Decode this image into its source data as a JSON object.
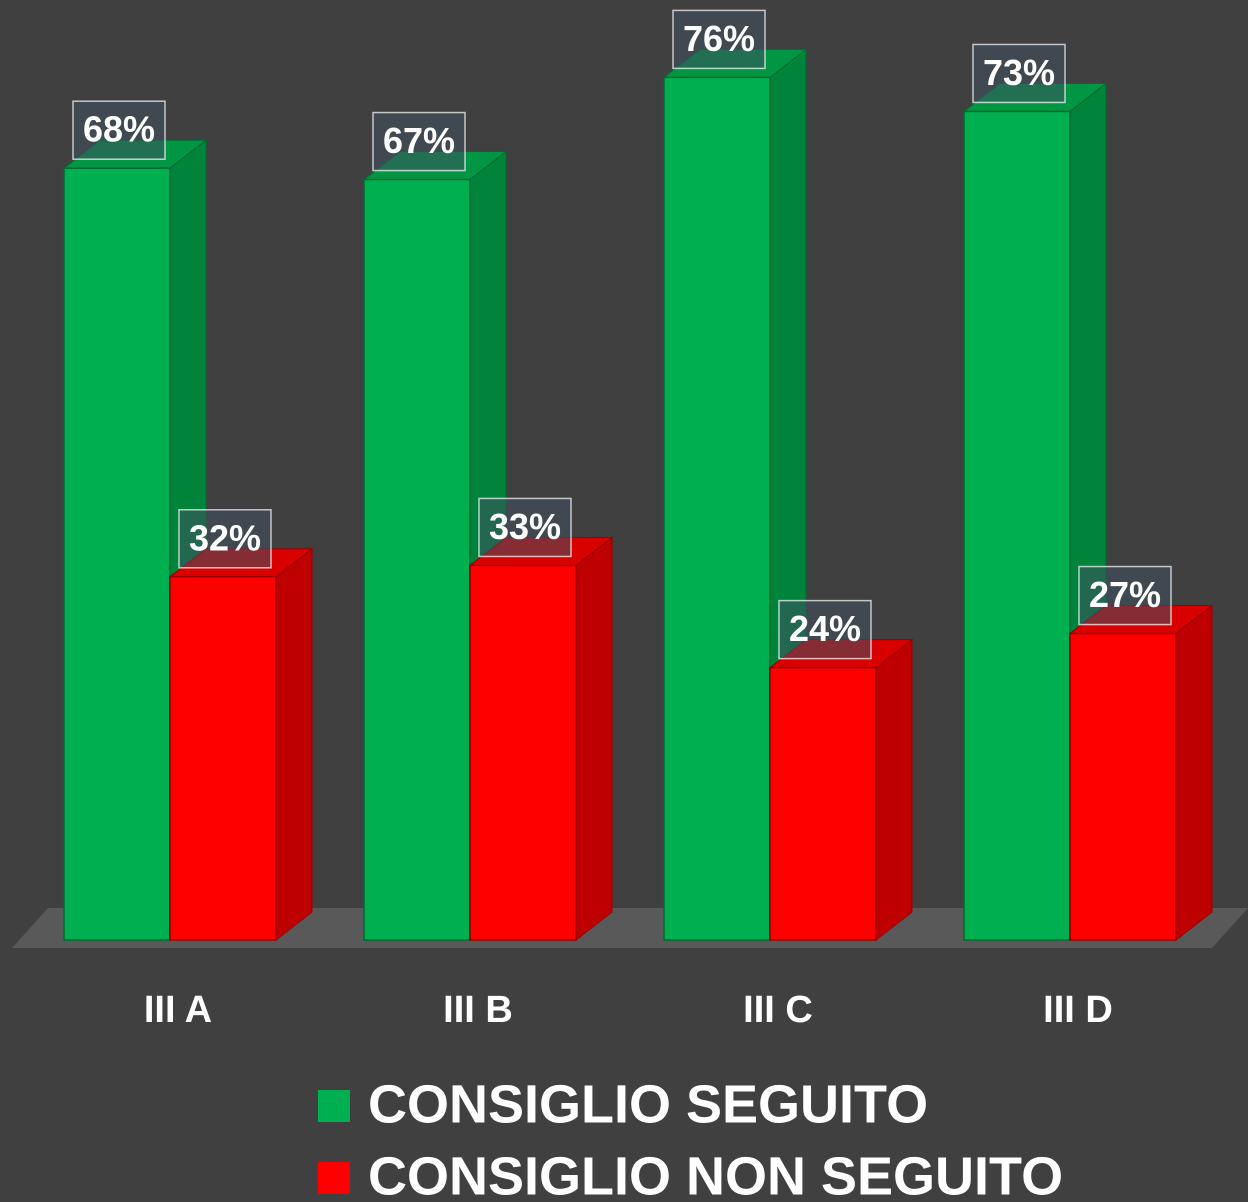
{
  "chart_data": {
    "type": "bar3d",
    "categories": [
      "III A",
      "III B",
      "III C",
      "III D"
    ],
    "series": [
      {
        "name": "CONSIGLIO SEGUITO",
        "color": "#00b050",
        "values": [
          68,
          67,
          76,
          73
        ],
        "value_labels": [
          "68%",
          "67%",
          "76%",
          "73%"
        ]
      },
      {
        "name": "CONSIGLIO NON SEGUITO",
        "color": "#ff0000",
        "values": [
          32,
          33,
          24,
          27
        ],
        "value_labels": [
          "32%",
          "33%",
          "24%",
          "27%"
        ]
      }
    ],
    "ylim": [
      0,
      80
    ]
  }
}
